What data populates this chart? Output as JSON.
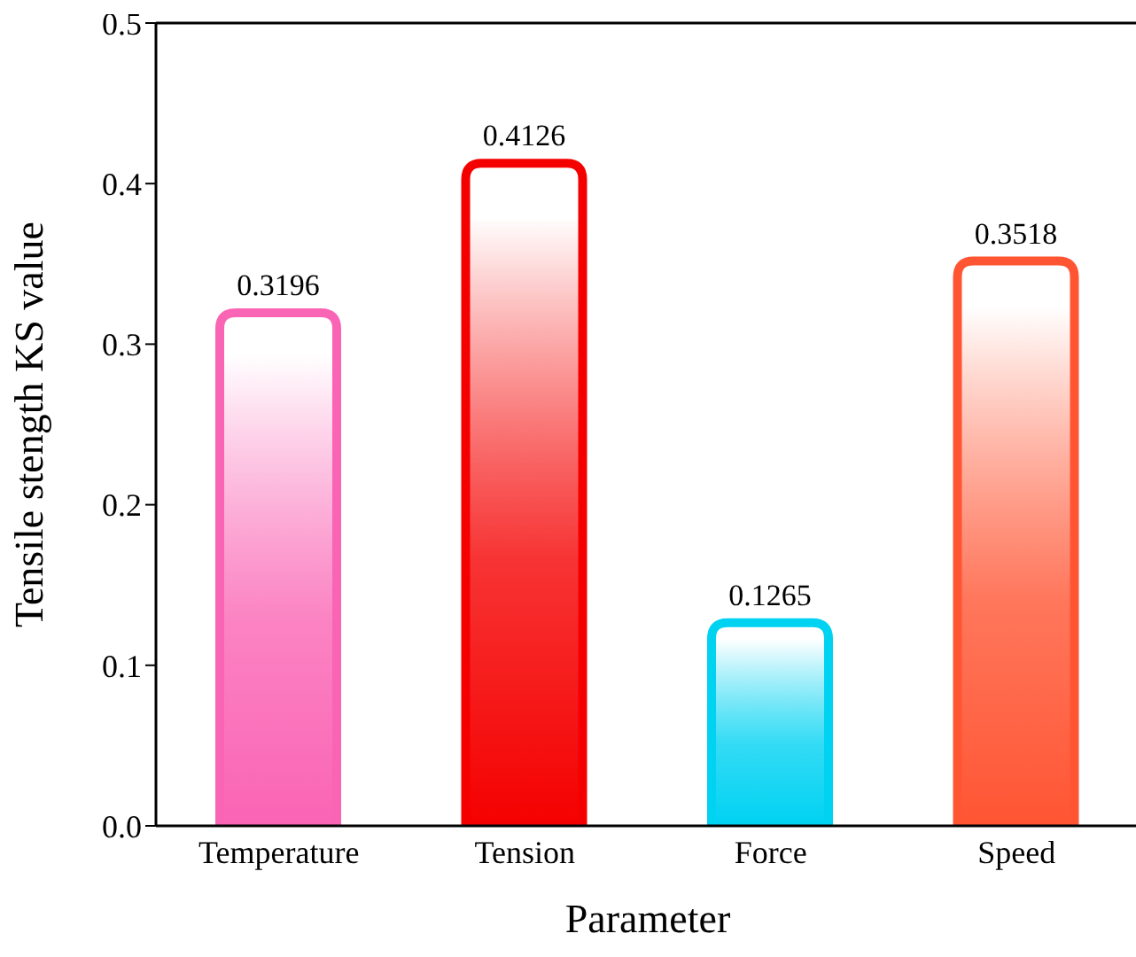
{
  "chart_data": {
    "type": "bar",
    "xlabel": "Parameter",
    "ylabel": "Tensile stength KS value",
    "categories": [
      "Temperature",
      "Tension",
      "Force",
      "Speed"
    ],
    "values": [
      0.3196,
      0.4126,
      0.1265,
      0.3518
    ],
    "colors": [
      "#fa64b4",
      "#f50000",
      "#00d2f2",
      "#ff5533"
    ],
    "ylim": [
      0,
      0.5
    ],
    "yticks": [
      {
        "value": 0,
        "label": "0.0"
      },
      0.1,
      0.2,
      0.3,
      0.4,
      0.5
    ],
    "data_labels": true,
    "grid": false,
    "legend": false
  }
}
